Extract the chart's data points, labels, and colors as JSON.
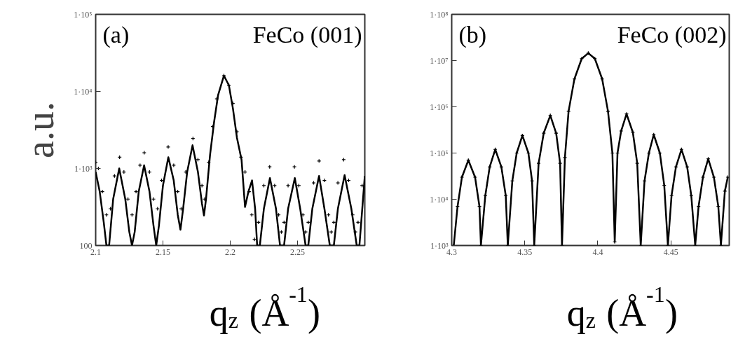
{
  "chart_data": [
    {
      "type": "line",
      "xlabel": "q$_{z}$ (Å$^{-1}$)",
      "ylabel": "a.u.",
      "annotations": [
        "(a)",
        "FeCo (001)"
      ],
      "log": true,
      "xlim": [
        2.1,
        2.3
      ],
      "ylim": [
        100,
        100000
      ],
      "xticks": [
        2.1,
        2.15,
        2.2,
        2.25
      ],
      "yticks": [
        100,
        {
          "value": 1000,
          "label": "1·10³"
        },
        {
          "value": 10000,
          "label": "1·10⁴"
        },
        {
          "value": 100000,
          "label": "1·10⁵"
        }
      ],
      "series": [
        {
          "color": "#000000",
          "marker": "none",
          "line_style": "solid",
          "x": [
            2.1,
            2.103,
            2.106,
            2.108,
            2.11,
            2.113,
            2.1175,
            2.122,
            2.125,
            2.127,
            2.129,
            2.132,
            2.136,
            2.14,
            2.143,
            2.145,
            2.147,
            2.15,
            2.154,
            2.158,
            2.161,
            2.163,
            2.165,
            2.168,
            2.172,
            2.176,
            2.179,
            2.1805,
            2.182,
            2.185,
            2.188,
            2.191,
            2.1953,
            2.199,
            2.202,
            2.205,
            2.2084,
            2.211,
            2.2135,
            2.2162,
            2.2185,
            2.22,
            2.222,
            2.225,
            2.2295,
            2.234,
            2.237,
            2.24,
            2.243,
            2.248,
            2.252,
            2.256,
            2.258,
            2.261,
            2.266,
            2.27,
            2.274,
            2.277,
            2.28,
            2.285,
            2.29,
            2.294,
            2.296,
            2.3
          ],
          "values": [
            900,
            500,
            200,
            100,
            100,
            400,
            1000,
            400,
            150,
            100,
            150,
            500,
            1100,
            500,
            180,
            100,
            180,
            600,
            1400,
            700,
            250,
            160,
            300,
            900,
            2000,
            900,
            350,
            245,
            400,
            1500,
            4000,
            9000,
            16000,
            12000,
            6000,
            2500,
            1300,
            316,
            500,
            700,
            300,
            100,
            100,
            300,
            750,
            300,
            100,
            100,
            300,
            750,
            300,
            100,
            100,
            300,
            800,
            300,
            100,
            100,
            300,
            820,
            300,
            100,
            100,
            800
          ]
        },
        {
          "type": "scatter",
          "color": "#000000",
          "marker": "cross",
          "x": [
            2.1,
            2.102,
            2.105,
            2.108,
            2.111,
            2.114,
            2.1178,
            2.121,
            2.124,
            2.127,
            2.13,
            2.133,
            2.1361,
            2.14,
            2.143,
            2.146,
            2.149,
            2.1539,
            2.158,
            2.161,
            2.1635,
            2.167,
            2.1723,
            2.176,
            2.179,
            2.181,
            2.184,
            2.187,
            2.19,
            2.1953,
            2.199,
            2.202,
            2.205,
            2.208,
            2.211,
            2.214,
            2.216,
            2.218,
            2.221,
            2.225,
            2.2293,
            2.233,
            2.236,
            2.238,
            2.24,
            2.243,
            2.2477,
            2.251,
            2.254,
            2.256,
            2.258,
            2.262,
            2.266,
            2.27,
            2.273,
            2.275,
            2.277,
            2.28,
            2.2843,
            2.288,
            2.291,
            2.293,
            2.295,
            2.298
          ],
          "values": [
            1200,
            1000,
            500,
            250,
            300,
            800,
            1400,
            900,
            400,
            250,
            500,
            1100,
            1600,
            900,
            400,
            300,
            700,
            1900,
            1100,
            500,
            300,
            900,
            2450,
            1300,
            600,
            400,
            1200,
            3500,
            8000,
            16000,
            12000,
            7000,
            3000,
            1400,
            900,
            500,
            250,
            120,
            200,
            600,
            1050,
            600,
            250,
            150,
            200,
            600,
            1050,
            600,
            250,
            150,
            200,
            650,
            1250,
            700,
            250,
            150,
            200,
            650,
            1300,
            700,
            250,
            150,
            200,
            600
          ]
        }
      ]
    },
    {
      "type": "line",
      "xlabel": "q$_{z}$ (Å$^{-1}$)",
      "annotations": [
        "(b)",
        "FeCo (002)"
      ],
      "log": true,
      "xlim": [
        4.3,
        4.49
      ],
      "ylim": [
        1000,
        100000000
      ],
      "xticks": [
        4.3,
        4.35,
        4.4,
        4.45
      ],
      "yticks": [
        {
          "value": 1000,
          "label": "1·10³"
        },
        {
          "value": 10000,
          "label": "1·10⁴"
        },
        {
          "value": 100000,
          "label": "1·10⁵"
        },
        {
          "value": 1000000,
          "label": "1·10⁶"
        },
        {
          "value": 10000000,
          "label": "1·10⁷"
        },
        {
          "value": 100000000,
          "label": "1·10⁸"
        }
      ],
      "series": [
        {
          "color": "#000000",
          "marker": "cross",
          "line_style": "solid",
          "x": [
            4.3014,
            4.304,
            4.307,
            4.3114,
            4.316,
            4.319,
            4.32,
            4.323,
            4.326,
            4.3298,
            4.334,
            4.337,
            4.3384,
            4.3415,
            4.3445,
            4.3484,
            4.3525,
            4.355,
            4.3565,
            4.3595,
            4.363,
            4.3675,
            4.3715,
            4.3742,
            4.3755,
            4.3775,
            4.38,
            4.384,
            4.389,
            4.3935,
            4.398,
            4.403,
            4.407,
            4.41,
            4.4116,
            4.4135,
            4.416,
            4.4197,
            4.424,
            4.427,
            4.4294,
            4.432,
            4.435,
            4.4383,
            4.4425,
            4.4455,
            4.448,
            4.4505,
            4.4535,
            4.4573,
            4.4612,
            4.464,
            4.4667,
            4.469,
            4.472,
            4.4756,
            4.4795,
            4.4825,
            4.4843,
            4.487,
            4.489
          ],
          "values": [
            1000,
            7000,
            30000,
            70000,
            30000,
            7000,
            1000,
            12000,
            50000,
            120000,
            50000,
            12000,
            1000,
            25000,
            100000,
            240000,
            100000,
            25000,
            1000,
            60000,
            270000,
            650000,
            270000,
            60000,
            1000,
            80000,
            800000,
            4000000,
            11000000,
            14500000,
            11000000,
            4000000,
            800000,
            100000,
            1200,
            100000,
            300000,
            700000,
            280000,
            60000,
            1000,
            25000,
            100000,
            250000,
            100000,
            20000,
            1000,
            12000,
            50000,
            120000,
            50000,
            12000,
            1000,
            7000,
            30000,
            75000,
            30000,
            7000,
            1000,
            15000,
            30000
          ]
        }
      ]
    }
  ]
}
